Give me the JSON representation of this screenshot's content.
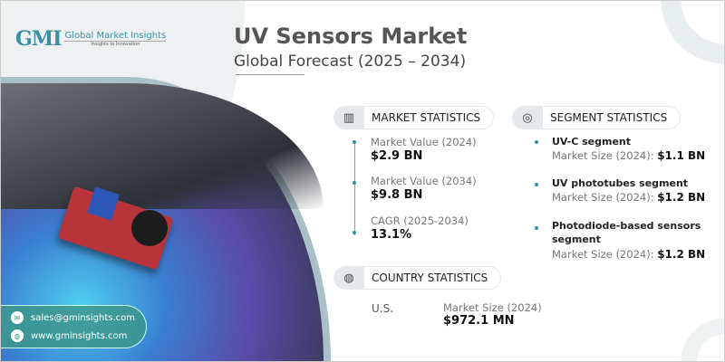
{
  "brand": {
    "logo_mark": "GMI",
    "name": "Global Market Insights",
    "tagline": "Insights to Innovation"
  },
  "header": {
    "title": "UV Sensors Market",
    "subtitle": "Global Forecast (2025 – 2034)"
  },
  "market_statistics": {
    "heading": "MARKET STATISTICS",
    "icon": "chart-globe-icon",
    "items": [
      {
        "label": "Market Value (2024)",
        "value": "$2.9 BN"
      },
      {
        "label": "Market Value (2034)",
        "value": "$9.8 BN"
      },
      {
        "label": "CAGR (2025-2034)",
        "value": "13.1%"
      }
    ]
  },
  "segment_statistics": {
    "heading": "SEGMENT STATISTICS",
    "icon": "target-chart-icon",
    "items": [
      {
        "name": "UV-C segment",
        "label": "Market Size (2024):",
        "value": "$1.1 BN"
      },
      {
        "name": "UV phototubes segment",
        "label": "Market Size (2024):",
        "value": "$1.2 BN"
      },
      {
        "name_line1": "Photodiode-based sensors",
        "name_line2": "segment",
        "label": "Market Size (2024):",
        "value": "$1.2 BN"
      }
    ]
  },
  "country_statistics": {
    "heading": "COUNTRY STATISTICS",
    "icon": "globe-icon",
    "country": "U.S.",
    "label": "Market Size (2024)",
    "value": "$972.1 MN"
  },
  "contact": {
    "email": "sales@gminsights.com",
    "website": "www.gminsights.com"
  },
  "colors": {
    "accent": "#2f8ea8",
    "contact_bg": "#3c968c"
  }
}
